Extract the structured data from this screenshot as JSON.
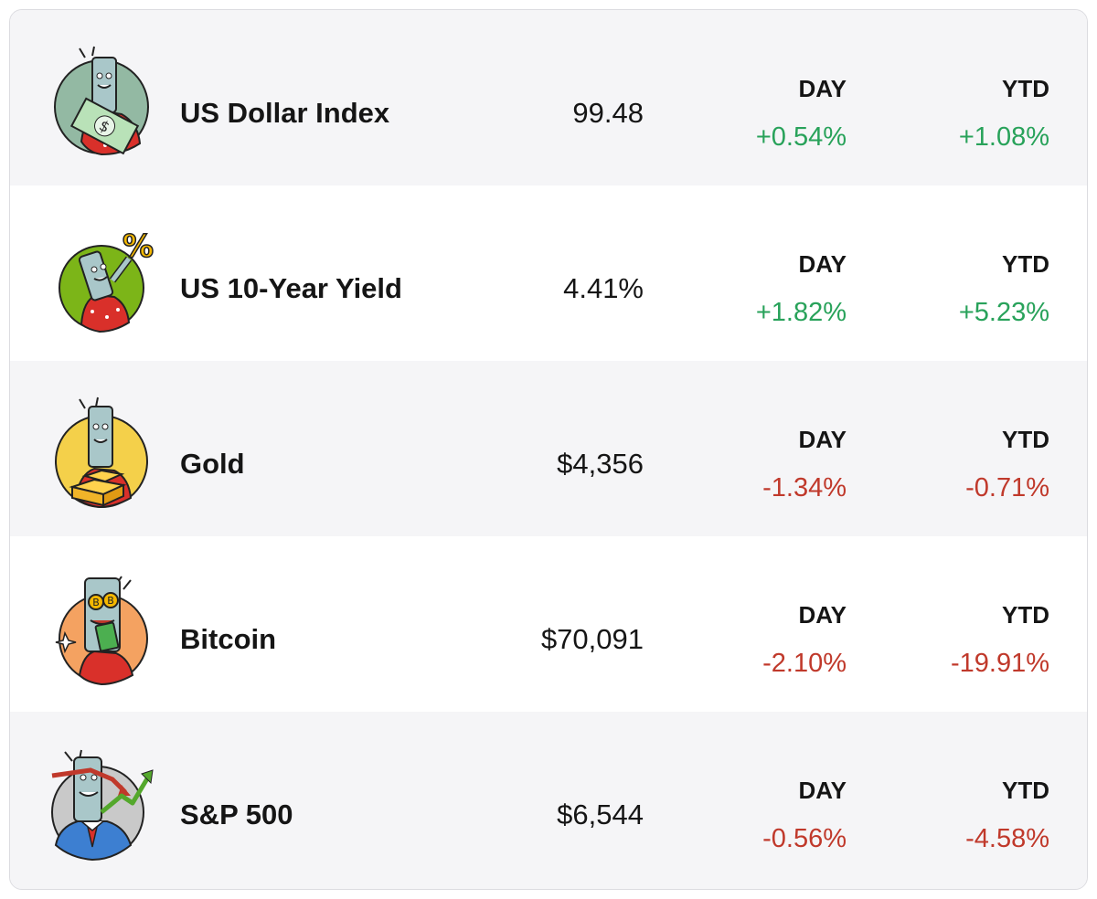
{
  "colors": {
    "positive": "#28a25a",
    "negative": "#c0392b",
    "row_alt": "#f5f5f7",
    "row": "#ffffff"
  },
  "labels": {
    "day": "DAY",
    "ytd": "YTD"
  },
  "rows": [
    {
      "name": "US Dollar Index",
      "value": "99.48",
      "day": "+0.54%",
      "ytd": "+1.08%",
      "icon": "dollar-mascot-icon",
      "day_dir": "pos",
      "ytd_dir": "pos"
    },
    {
      "name": "US 10-Year Yield",
      "value": "4.41%",
      "day": "+1.82%",
      "ytd": "+5.23%",
      "icon": "percent-mascot-icon",
      "day_dir": "pos",
      "ytd_dir": "pos"
    },
    {
      "name": "Gold",
      "value": "$4,356",
      "day": "-1.34%",
      "ytd": "-0.71%",
      "icon": "gold-mascot-icon",
      "day_dir": "neg",
      "ytd_dir": "neg"
    },
    {
      "name": "Bitcoin",
      "value": "$70,091",
      "day": "-2.10%",
      "ytd": "-19.91%",
      "icon": "bitcoin-mascot-icon",
      "day_dir": "neg",
      "ytd_dir": "neg"
    },
    {
      "name": "S&P 500",
      "value": "$6,544",
      "day": "-0.56%",
      "ytd": "-4.58%",
      "icon": "stock-chart-mascot-icon",
      "day_dir": "neg",
      "ytd_dir": "neg"
    }
  ]
}
